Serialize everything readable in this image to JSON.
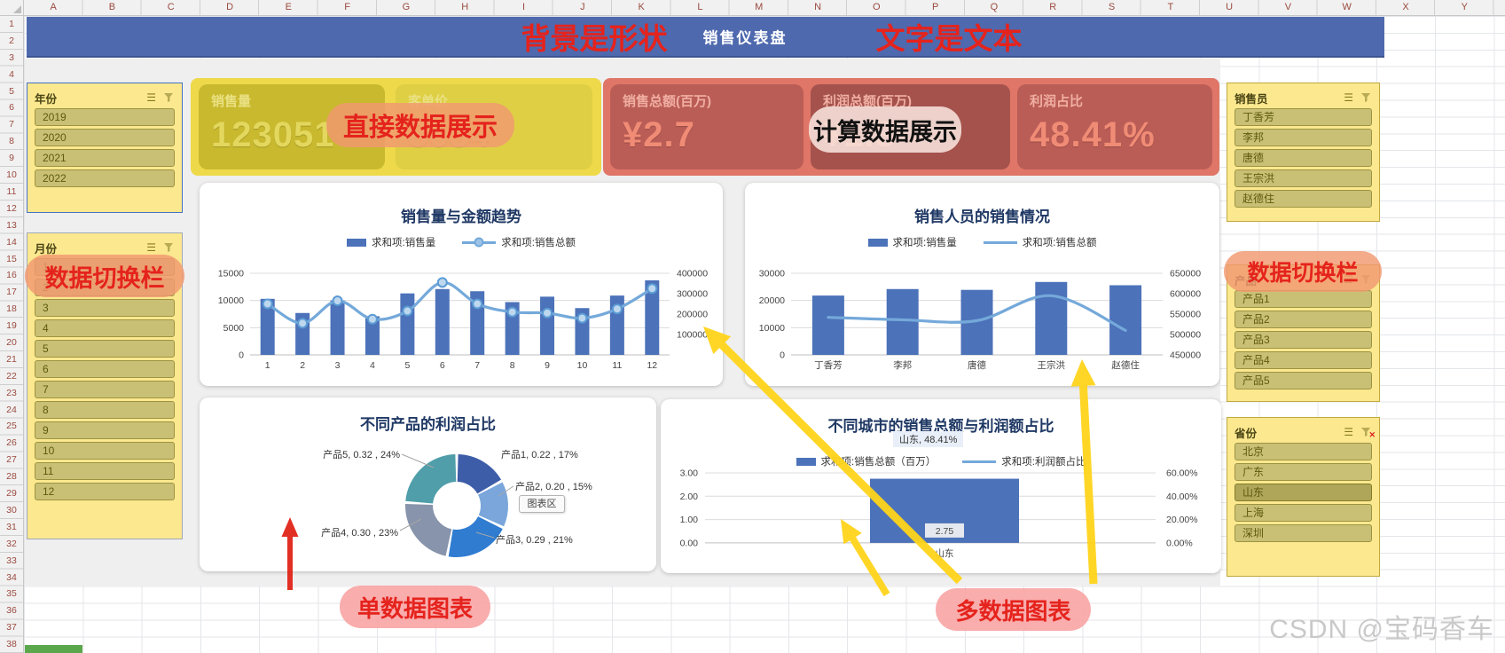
{
  "excel": {
    "columns": [
      "A",
      "B",
      "C",
      "D",
      "E",
      "F",
      "G",
      "H",
      "I",
      "J",
      "K",
      "L",
      "M",
      "N",
      "O",
      "P",
      "Q",
      "R",
      "S",
      "T",
      "U",
      "V",
      "W",
      "X",
      "Y"
    ],
    "row_count": 38
  },
  "banner": {
    "title": "销售仪表盘"
  },
  "annotations": {
    "banner_left": "背景是形状",
    "banner_right": "文字是文本",
    "direct": "直接数据展示",
    "calc": "计算数据展示",
    "switch_left": "数据切换栏",
    "switch_right": "数据切换栏",
    "single": "单数据图表",
    "multi": "多数据图表"
  },
  "slicers": {
    "year": {
      "title": "年份",
      "items": [
        "2019",
        "2020",
        "2021",
        "2022"
      ]
    },
    "month": {
      "title": "月份",
      "items": [
        "1",
        "2",
        "3",
        "4",
        "5",
        "6",
        "7",
        "8",
        "9",
        "10",
        "11",
        "12"
      ]
    },
    "salesperson": {
      "title": "销售员",
      "items": [
        "丁香芳",
        "李邦",
        "唐德",
        "王宗洪",
        "赵德住"
      ]
    },
    "product": {
      "title": "产品",
      "items": [
        "产品1",
        "产品2",
        "产品3",
        "产品4",
        "产品5"
      ]
    },
    "province": {
      "title": "省份",
      "items": [
        "北京",
        "广东",
        "山东",
        "上海",
        "深圳"
      ],
      "selected": "山东"
    }
  },
  "kpis": {
    "groups": [
      {
        "style": "yellow",
        "cards": [
          {
            "label": "销售量",
            "value": "123051"
          },
          {
            "label": "客单价",
            "value": "8634"
          }
        ]
      },
      {
        "style": "red",
        "cards": [
          {
            "label": "销售总额(百万)",
            "value": "¥2.7"
          },
          {
            "label": "利润总额(百万)",
            "value": "¥1.3"
          },
          {
            "label": "利润占比",
            "value": "48.41%"
          }
        ]
      }
    ]
  },
  "watermark": "CSDN @宝码香车",
  "colors": {
    "bar": "#4C72B9",
    "line": "#74A9DA",
    "banner": "#4E69AE",
    "slicer_bg": "#FBE88F",
    "annotation_red": "#E5231D",
    "arrow_yellow": "#FFD41A",
    "arrow_red": "#E02418"
  },
  "chart_data": [
    {
      "type": "bar",
      "subtype": "combo_bar_line",
      "title": "销售量与金额趋势",
      "legend": [
        "求和项:销售量",
        "求和项:销售总额"
      ],
      "categories": [
        "1",
        "2",
        "3",
        "4",
        "5",
        "6",
        "7",
        "8",
        "9",
        "10",
        "11",
        "12"
      ],
      "series": [
        {
          "name": "求和项:销售量",
          "type": "bar",
          "axis": "left",
          "values": [
            10300,
            7700,
            10000,
            7100,
            11300,
            12100,
            11700,
            9700,
            10700,
            8600,
            10900,
            13700
          ]
        },
        {
          "name": "求和项:销售总额",
          "type": "line",
          "axis": "right",
          "values": [
            250000,
            155000,
            265000,
            175000,
            215000,
            355000,
            250000,
            210000,
            205000,
            180000,
            225000,
            325000
          ]
        }
      ],
      "left_ticks": [
        0,
        5000,
        10000,
        15000
      ],
      "right_ticks": [
        100000,
        200000,
        300000,
        400000
      ],
      "left_max": 15000,
      "right_min": 0,
      "right_max": 400000,
      "markers": true,
      "legend_position": "top",
      "grid": true
    },
    {
      "type": "bar",
      "subtype": "combo_bar_line",
      "title": "销售人员的销售情况",
      "legend": [
        "求和项:销售量",
        "求和项:销售总额"
      ],
      "categories": [
        "丁香芳",
        "李邦",
        "唐德",
        "王宗洪",
        "赵德住"
      ],
      "series": [
        {
          "name": "求和项:销售量",
          "type": "bar",
          "axis": "left",
          "values": [
            21800,
            24200,
            23900,
            26800,
            25600
          ]
        },
        {
          "name": "求和项:销售总额",
          "type": "line",
          "axis": "right",
          "values": [
            542000,
            536000,
            534000,
            595000,
            510000
          ]
        }
      ],
      "left_ticks": [
        0,
        10000,
        20000,
        30000
      ],
      "right_ticks": [
        450000,
        500000,
        550000,
        600000,
        650000
      ],
      "left_max": 30000,
      "right_min": 450000,
      "right_max": 650000,
      "markers": false,
      "legend_position": "top",
      "grid": true
    },
    {
      "type": "pie",
      "subtype": "donut",
      "title": "不同产品的利润占比",
      "slices": [
        {
          "name": "产品1",
          "label": "产品1, 0.22 , 17%",
          "value": 0.22,
          "pct": 17,
          "color": "#3E5DA8"
        },
        {
          "name": "产品2",
          "label": "产品2, 0.20 , 15%",
          "value": 0.2,
          "pct": 15,
          "color": "#7AA6DB"
        },
        {
          "name": "产品3",
          "label": "产品3, 0.29 , 21%",
          "value": 0.29,
          "pct": 21,
          "color": "#2F7CD1"
        },
        {
          "name": "产品4",
          "label": "产品4, 0.30 , 23%",
          "value": 0.3,
          "pct": 23,
          "color": "#8794AB"
        },
        {
          "name": "产品5",
          "label": "产品5, 0.32 , 24%",
          "value": 0.32,
          "pct": 24,
          "color": "#4F9EA9"
        }
      ],
      "tooltip": "图表区"
    },
    {
      "type": "bar",
      "subtype": "single_bar",
      "title": "不同城市的销售总额与利润额占比",
      "float_label": "山东, 48.41%",
      "legend": [
        "求和项:销售总额（百万）",
        "求和项:利润额占比"
      ],
      "categories": [
        "山东"
      ],
      "values": [
        2.75
      ],
      "bar_label": "2.75",
      "line_value_pct": 48.41,
      "left_ticks": [
        "3.00",
        "2.00",
        "1.00",
        "0.00"
      ],
      "right_ticks": [
        "60.00%",
        "40.00%",
        "20.00%",
        "0.00%"
      ],
      "left_max": 3,
      "grid": true
    }
  ]
}
